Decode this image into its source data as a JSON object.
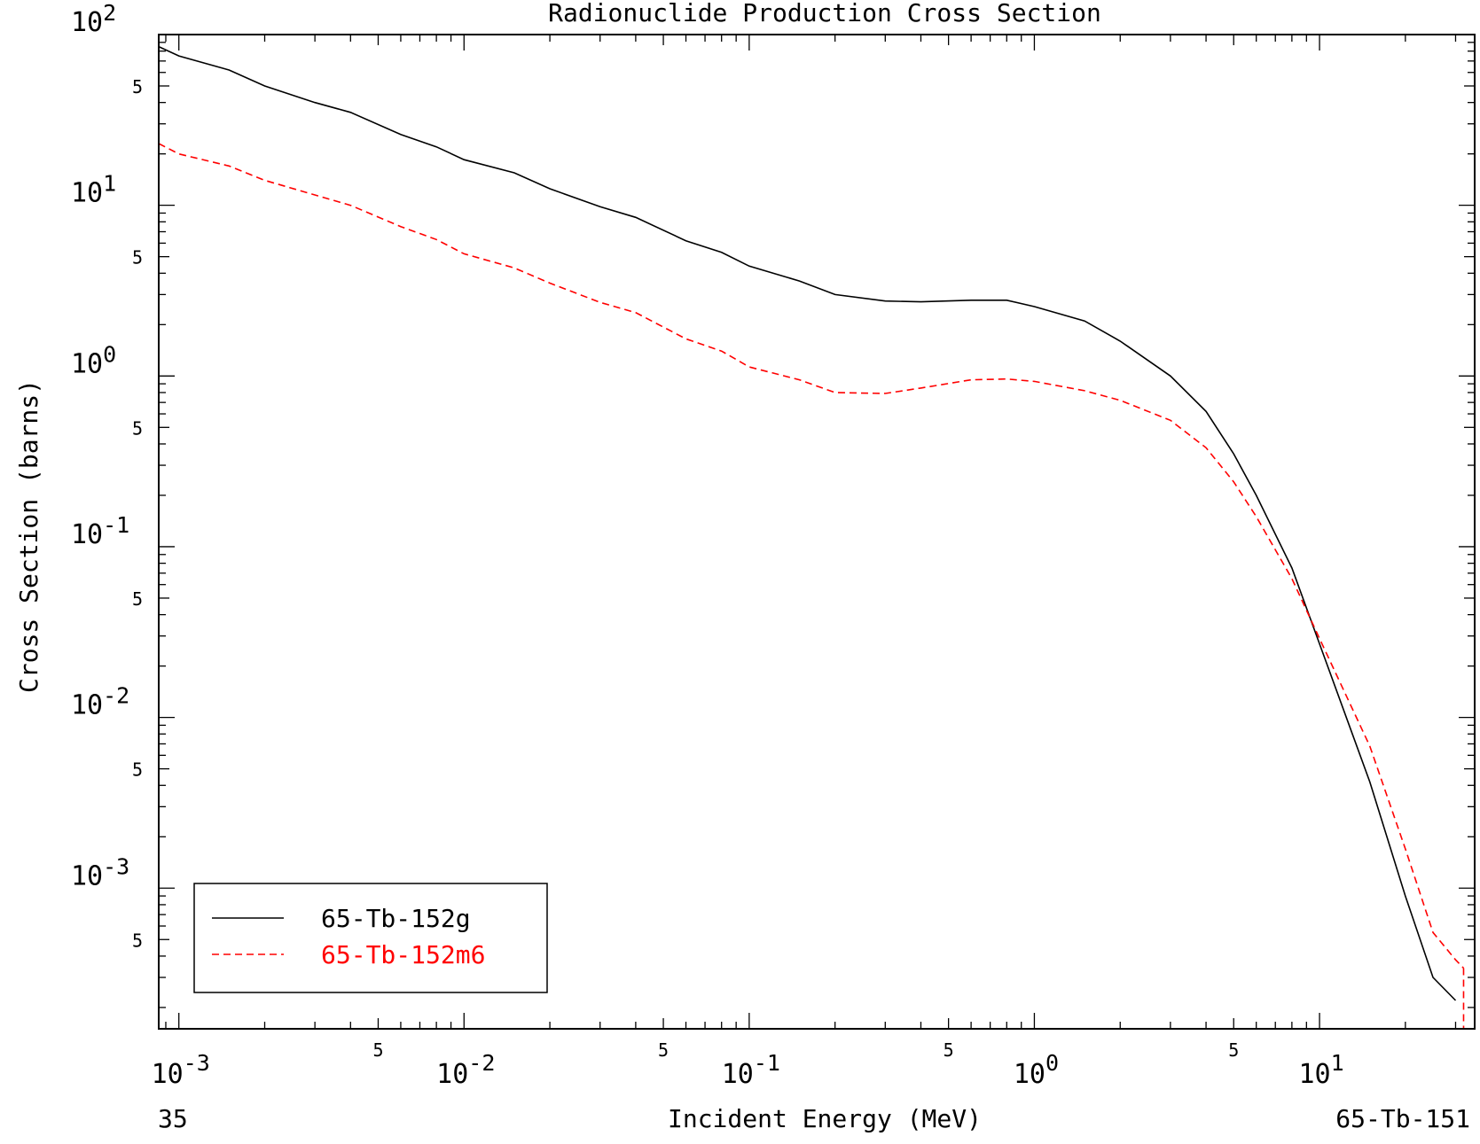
{
  "chart_data": {
    "type": "line",
    "title": "Radionuclide Production Cross Section",
    "xlabel": "Incident Energy (MeV)",
    "ylabel": "Cross Section (barns)",
    "xscale": "log",
    "yscale": "log",
    "xlim": [
      0.00085,
      35
    ],
    "ylim": [
      0.00015,
      100
    ],
    "grid": false,
    "legend_position": "bottom-left",
    "footer_left": "35",
    "footer_right": "65-Tb-151",
    "x_ticks": [
      {
        "value": 0.001,
        "base": "10",
        "exp": "-3"
      },
      {
        "value": 0.01,
        "base": "10",
        "exp": "-2"
      },
      {
        "value": 0.1,
        "base": "10",
        "exp": "-1"
      },
      {
        "value": 1,
        "base": "10",
        "exp": "0"
      },
      {
        "value": 10,
        "base": "10",
        "exp": "1"
      }
    ],
    "x_minor_labels": [
      {
        "value": 0.005,
        "label": "5"
      },
      {
        "value": 0.05,
        "label": "5"
      },
      {
        "value": 0.5,
        "label": "5"
      },
      {
        "value": 5,
        "label": "5"
      }
    ],
    "y_ticks": [
      {
        "value": 100,
        "base": "10",
        "exp": "2"
      },
      {
        "value": 10,
        "base": "10",
        "exp": "1"
      },
      {
        "value": 1,
        "base": "10",
        "exp": "0"
      },
      {
        "value": 0.1,
        "base": "10",
        "exp": "-1"
      },
      {
        "value": 0.01,
        "base": "10",
        "exp": "-2"
      },
      {
        "value": 0.001,
        "base": "10",
        "exp": "-3"
      }
    ],
    "y_minor_labels": [
      {
        "value": 50,
        "label": "5"
      },
      {
        "value": 5,
        "label": "5"
      },
      {
        "value": 0.5,
        "label": "5"
      },
      {
        "value": 0.05,
        "label": "5"
      },
      {
        "value": 0.005,
        "label": "5"
      },
      {
        "value": 0.0005,
        "label": "5"
      }
    ],
    "series": [
      {
        "name": "65-Tb-152g",
        "color": "#000000",
        "dash": "solid",
        "x": [
          0.00085,
          0.001,
          0.0015,
          0.002,
          0.003,
          0.004,
          0.006,
          0.008,
          0.01,
          0.015,
          0.02,
          0.03,
          0.04,
          0.06,
          0.08,
          0.1,
          0.15,
          0.2,
          0.3,
          0.4,
          0.6,
          0.8,
          1.0,
          1.5,
          2.0,
          3.0,
          4.0,
          5.0,
          6.0,
          8.0,
          10.0,
          15.0,
          20.0,
          25.0,
          30.0
        ],
        "y": [
          85,
          75,
          62,
          50,
          40,
          35,
          26,
          22,
          18.5,
          15.5,
          12.5,
          9.8,
          8.5,
          6.2,
          5.3,
          4.4,
          3.6,
          3.0,
          2.75,
          2.72,
          2.78,
          2.78,
          2.55,
          2.1,
          1.6,
          1.0,
          0.62,
          0.35,
          0.2,
          0.075,
          0.027,
          0.0042,
          0.0009,
          0.0003,
          0.00022
        ]
      },
      {
        "name": "65-Tb-152m6",
        "color": "#ff0000",
        "dash": "dashed",
        "x": [
          0.00085,
          0.001,
          0.0015,
          0.002,
          0.003,
          0.004,
          0.006,
          0.008,
          0.01,
          0.015,
          0.02,
          0.03,
          0.04,
          0.06,
          0.08,
          0.1,
          0.15,
          0.2,
          0.3,
          0.4,
          0.6,
          0.8,
          1.0,
          1.5,
          2.0,
          3.0,
          4.0,
          5.0,
          6.0,
          8.0,
          10.0,
          15.0,
          20.0,
          25.0,
          30.0,
          32.0
        ],
        "y": [
          23,
          20,
          17,
          14,
          11.5,
          10,
          7.5,
          6.3,
          5.2,
          4.3,
          3.5,
          2.7,
          2.35,
          1.65,
          1.4,
          1.13,
          0.95,
          0.8,
          0.79,
          0.85,
          0.95,
          0.96,
          0.93,
          0.82,
          0.72,
          0.55,
          0.38,
          0.24,
          0.15,
          0.065,
          0.029,
          0.0068,
          0.0017,
          0.00055,
          0.00038,
          0.00034
        ]
      }
    ]
  }
}
